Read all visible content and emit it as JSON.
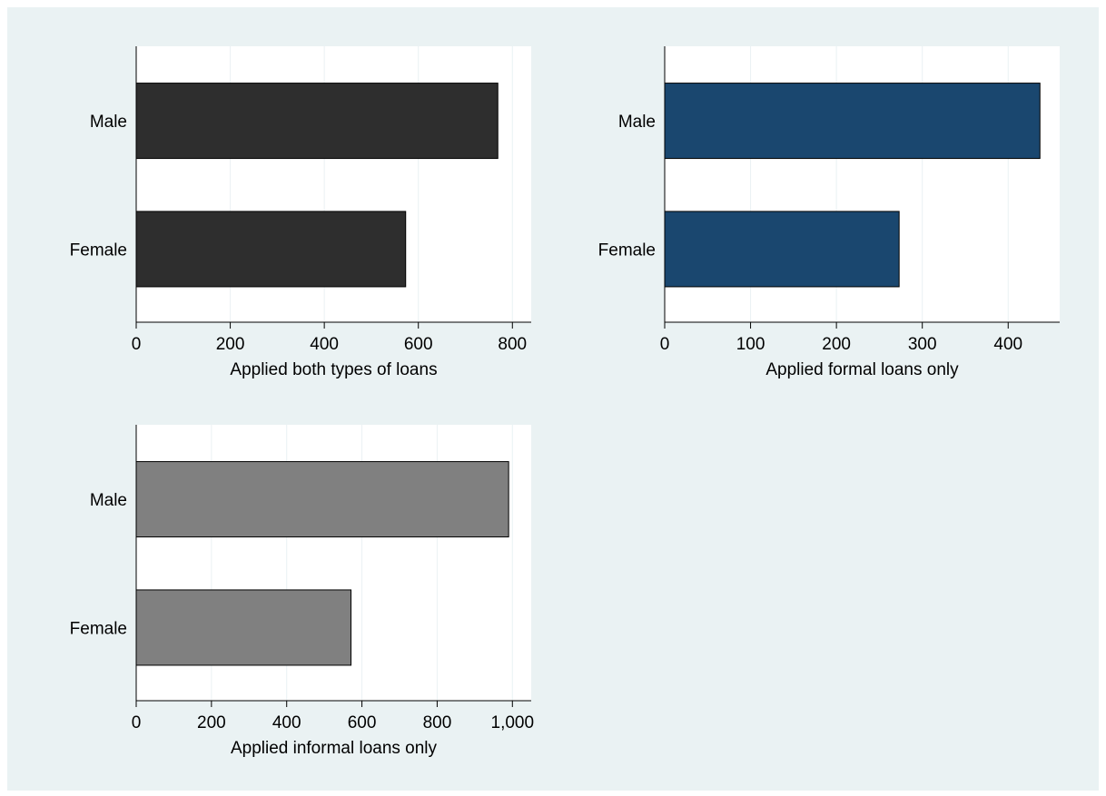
{
  "chart_data": [
    {
      "type": "bar",
      "orientation": "horizontal",
      "categories": [
        "Male",
        "Female"
      ],
      "values": [
        769,
        573
      ],
      "xlabel": "Applied both types of loans",
      "xlim": [
        0,
        840
      ],
      "xticks": [
        0,
        200,
        400,
        600,
        800
      ],
      "xtick_labels": [
        "0",
        "200",
        "400",
        "600",
        "800"
      ],
      "bar_color": "#2e2e2e",
      "grid": true
    },
    {
      "type": "bar",
      "orientation": "horizontal",
      "categories": [
        "Male",
        "Female"
      ],
      "values": [
        437,
        273
      ],
      "xlabel": "Applied formal loans only",
      "xlim": [
        0,
        460
      ],
      "xticks": [
        0,
        100,
        200,
        300,
        400
      ],
      "xtick_labels": [
        "0",
        "100",
        "200",
        "300",
        "400"
      ],
      "bar_color": "#1a476f",
      "grid": true
    },
    {
      "type": "bar",
      "orientation": "horizontal",
      "categories": [
        "Male",
        "Female"
      ],
      "values": [
        990,
        571
      ],
      "xlabel": "Applied informal loans only",
      "xlim": [
        0,
        1050
      ],
      "xticks": [
        0,
        200,
        400,
        600,
        800,
        1000
      ],
      "xtick_labels": [
        "0",
        "200",
        "400",
        "600",
        "800",
        "1,000"
      ],
      "bar_color": "#808080",
      "grid": true
    }
  ],
  "colors": {
    "background": "#eaf2f3",
    "plot_area": "#ffffff",
    "gridline": "#eaf2f3"
  }
}
